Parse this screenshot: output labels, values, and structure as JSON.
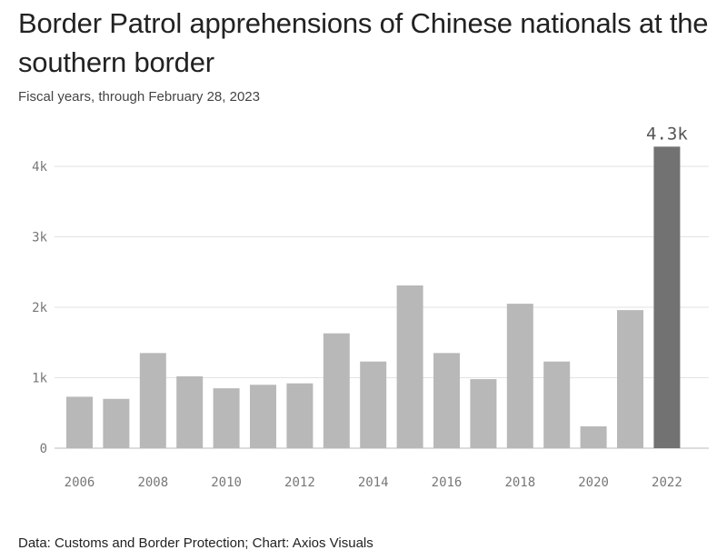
{
  "header": {
    "title": "Border Patrol apprehensions of Chinese nationals at the southern border",
    "subtitle": "Fiscal years, through February 28, 2023"
  },
  "footer": {
    "source": "Data: Customs and Border Protection; Chart: Axios Visuals"
  },
  "colors": {
    "bar": "#b8b8b8",
    "highlight_bar": "#727272",
    "gridline": "#e2e2e2",
    "tick_text": "#777777"
  },
  "chart_data": {
    "type": "bar",
    "title": "Border Patrol apprehensions of Chinese nationals at the southern border",
    "subtitle": "Fiscal years, through February 28, 2023",
    "xlabel": "",
    "ylabel": "",
    "categories": [
      "2006",
      "2007",
      "2008",
      "2009",
      "2010",
      "2011",
      "2012",
      "2013",
      "2014",
      "2015",
      "2016",
      "2017",
      "2018",
      "2019",
      "2020",
      "2021",
      "2022"
    ],
    "values": [
      730,
      700,
      1350,
      1020,
      850,
      900,
      920,
      1630,
      1230,
      2310,
      1350,
      980,
      2050,
      1230,
      310,
      1960,
      4280
    ],
    "ylim": [
      0,
      4300
    ],
    "yticks": [
      0,
      1000,
      2000,
      3000,
      4000
    ],
    "ytick_labels": [
      "0",
      "1k",
      "2k",
      "3k",
      "4k"
    ],
    "xtick_labels": [
      "2006",
      "2008",
      "2010",
      "2012",
      "2014",
      "2016",
      "2018",
      "2020",
      "2022"
    ],
    "highlight_index": 16,
    "highlight_label": "4.3k",
    "grid": true,
    "legend": "none"
  }
}
